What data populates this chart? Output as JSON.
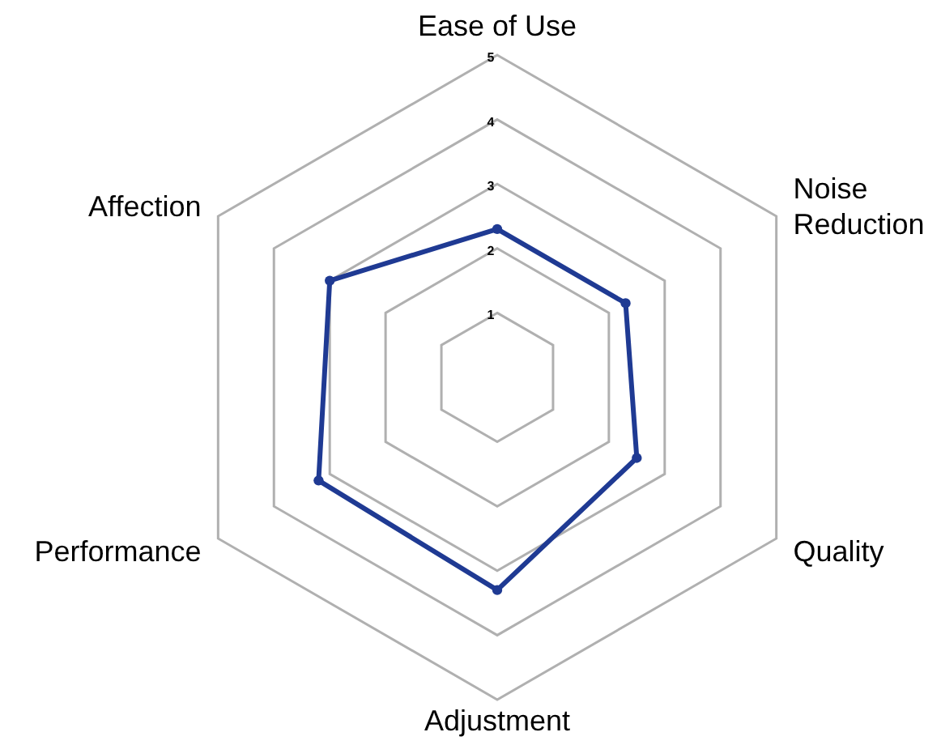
{
  "chart_data": {
    "type": "radar",
    "categories": [
      "Ease of Use",
      "Noise Reduction",
      "Quality",
      "Adjustment",
      "Performance",
      "Affection"
    ],
    "series": [
      {
        "color": "#1f3a93",
        "values": [
          2.3,
          2.3,
          2.5,
          3.3,
          3.2,
          3.0
        ]
      }
    ],
    "ylim": [
      0,
      5
    ],
    "yticks": [
      1,
      2,
      3,
      4,
      5
    ],
    "grid": true,
    "marker": "circle"
  }
}
